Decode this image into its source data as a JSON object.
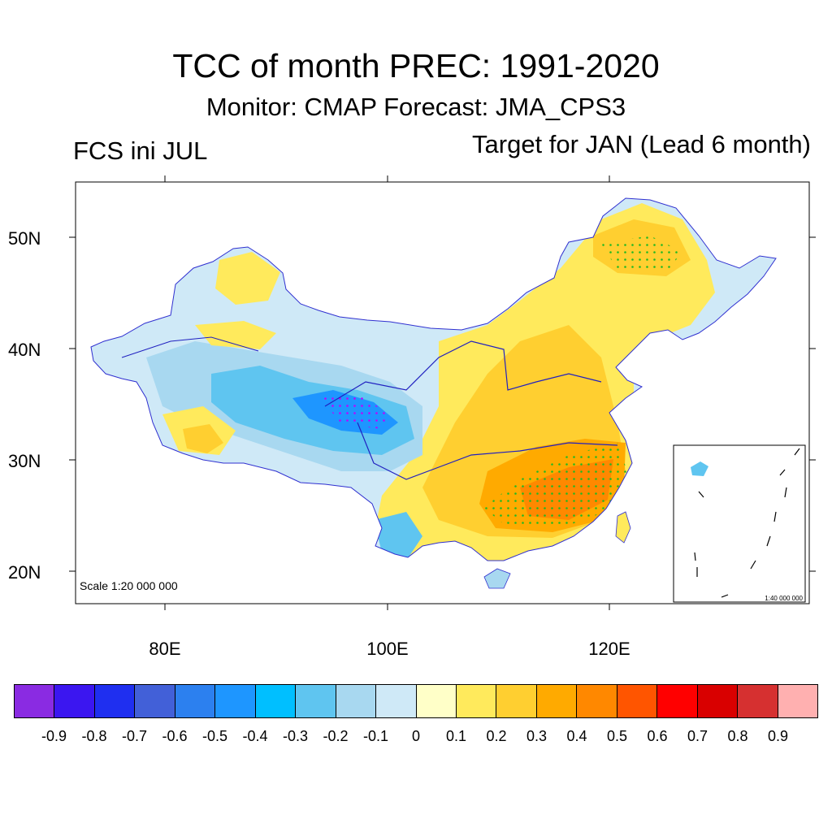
{
  "header": {
    "title": "TCC of month PREC: 1991-2020",
    "subtitle": "Monitor: CMAP   Forecast: JMA_CPS3",
    "left_label": "FCS ini JUL",
    "right_label": "Target for JAN (Lead 6 month)"
  },
  "map": {
    "lat_labels": [
      "50N",
      "40N",
      "30N",
      "20N"
    ],
    "lon_labels": [
      "80E",
      "100E",
      "120E"
    ],
    "scale_text": "Scale 1:20 000 000",
    "inset_scale_text": "1:40 000 000"
  },
  "colorbar": {
    "colors": [
      "#8a2be2",
      "#3b16f0",
      "#1f2ff0",
      "#4260d8",
      "#2c80ef",
      "#1e96ff",
      "#00bfff",
      "#5fc5f0",
      "#a8d8f0",
      "#cfe9f7",
      "#ffffc8",
      "#ffea5c",
      "#ffcf30",
      "#ffaa00",
      "#ff8800",
      "#ff5500",
      "#ff0000",
      "#d90000",
      "#d63030",
      "#ffb0b0"
    ],
    "labels": [
      "-0.9",
      "-0.8",
      "-0.7",
      "-0.6",
      "-0.5",
      "-0.4",
      "-0.3",
      "-0.2",
      "-0.1",
      "0",
      "0.1",
      "0.2",
      "0.3",
      "0.4",
      "0.5",
      "0.6",
      "0.7",
      "0.8",
      "0.9"
    ]
  }
}
